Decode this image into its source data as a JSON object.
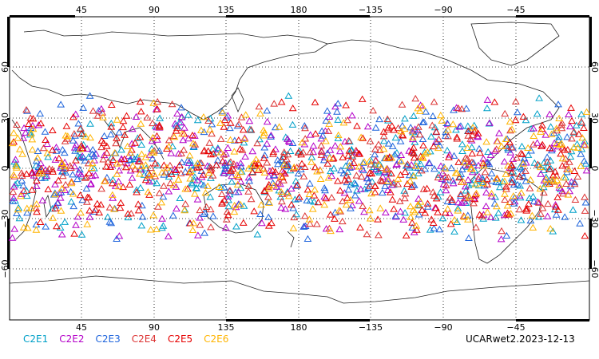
{
  "chart_data": {
    "type": "scatter",
    "title": "",
    "caption": "UCARwet2.2023-12-13",
    "x_ticks": [
      "45",
      "90",
      "135",
      "180",
      "−135",
      "−90",
      "−45"
    ],
    "y_ticks": [
      "60",
      "30",
      "0",
      "−30",
      "−60"
    ],
    "grid": true,
    "legend_placement": "bottom-left",
    "series": [
      {
        "name": "C2E1",
        "color": "#00a0c8"
      },
      {
        "name": "C2E2",
        "color": "#b400c8"
      },
      {
        "name": "C2E3",
        "color": "#1e64dc"
      },
      {
        "name": "C2E4",
        "color": "#dc3232"
      },
      {
        "name": "C2E5",
        "color": "#e60000"
      },
      {
        "name": "C2E6",
        "color": "#ffb400"
      }
    ],
    "observation_latitude_band": [
      -45,
      45
    ]
  }
}
